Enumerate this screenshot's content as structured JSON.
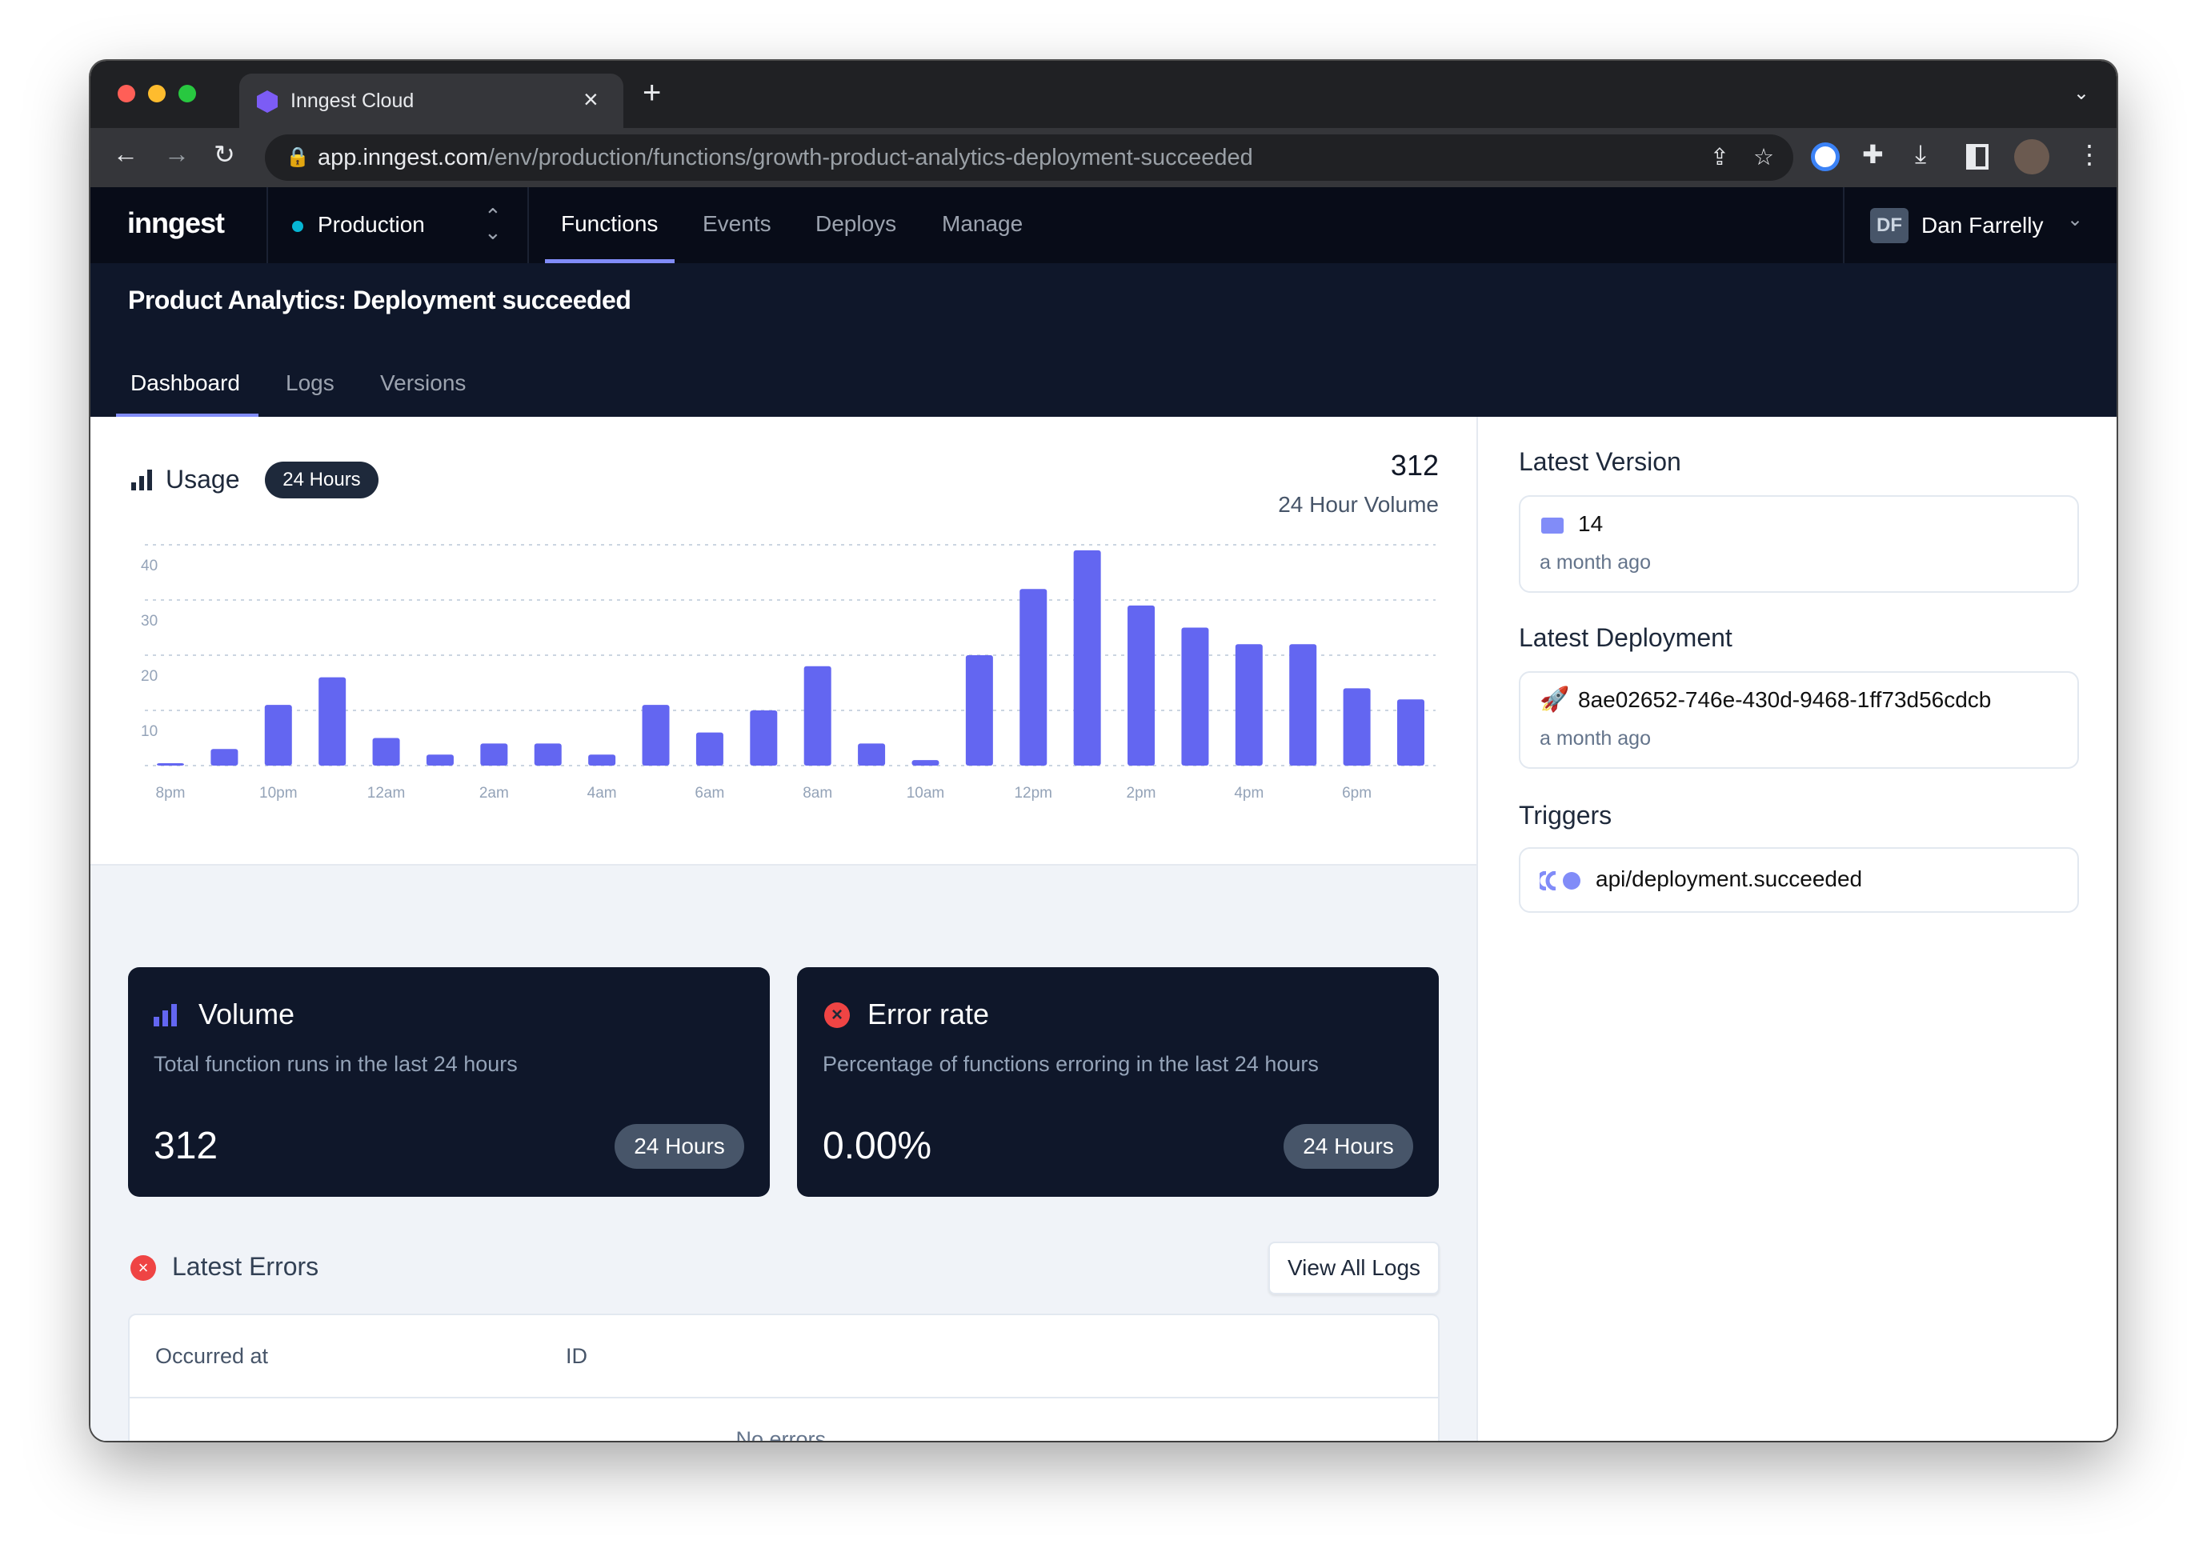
{
  "browser": {
    "tab_title": "Inngest Cloud",
    "url_host": "app.inngest.com",
    "url_path": "/env/production/functions/growth-product-analytics-deployment-succeeded"
  },
  "nav": {
    "logo": "inngest",
    "environment": "Production",
    "items": [
      {
        "label": "Functions",
        "active": true
      },
      {
        "label": "Events"
      },
      {
        "label": "Deploys"
      },
      {
        "label": "Manage"
      }
    ],
    "user_initials": "DF",
    "user_name": "Dan Farrelly"
  },
  "page": {
    "title": "Product Analytics: Deployment succeeded",
    "tabs": [
      {
        "label": "Dashboard",
        "active": true
      },
      {
        "label": "Logs"
      },
      {
        "label": "Versions"
      }
    ]
  },
  "usage": {
    "title": "Usage",
    "range_badge": "24 Hours",
    "total": "312",
    "total_label": "24 Hour Volume"
  },
  "chart_data": {
    "type": "bar",
    "categories": [
      "8pm",
      "9pm",
      "10pm",
      "11pm",
      "12am",
      "1am",
      "2am",
      "3am",
      "4am",
      "5am",
      "6am",
      "7am",
      "8am",
      "9am",
      "10am",
      "11am",
      "12pm",
      "1pm",
      "2pm",
      "3pm",
      "4pm",
      "5pm",
      "6pm",
      "7pm"
    ],
    "tick_labels": [
      "8pm",
      "10pm",
      "12am",
      "2am",
      "4am",
      "6am",
      "8am",
      "10am",
      "12pm",
      "2pm",
      "4pm",
      "6pm"
    ],
    "values": [
      0,
      3,
      11,
      16,
      5,
      2,
      4,
      4,
      2,
      11,
      6,
      10,
      18,
      4,
      1,
      20,
      32,
      39,
      29,
      25,
      22,
      22,
      14,
      12
    ],
    "yticks": [
      10,
      20,
      30,
      40
    ],
    "ylim": [
      0,
      40
    ],
    "grid": true,
    "color": "#6366f1"
  },
  "stats": {
    "volume": {
      "title": "Volume",
      "description": "Total function runs in the last 24 hours",
      "value": "312",
      "range": "24 Hours"
    },
    "error_rate": {
      "title": "Error rate",
      "description": "Percentage of functions erroring in the last 24 hours",
      "value": "0.00%",
      "range": "24 Hours"
    }
  },
  "errors": {
    "title": "Latest Errors",
    "view_all": "View All Logs",
    "columns": [
      "Occurred at",
      "ID"
    ],
    "empty": "No errors."
  },
  "sidebar": {
    "latest_version": {
      "title": "Latest Version",
      "version": "14",
      "time": "a month ago"
    },
    "latest_deployment": {
      "title": "Latest Deployment",
      "id": "8ae02652-746e-430d-9468-1ff73d56cdcb",
      "time": "a month ago"
    },
    "triggers": {
      "title": "Triggers",
      "event": "api/deployment.succeeded"
    }
  }
}
